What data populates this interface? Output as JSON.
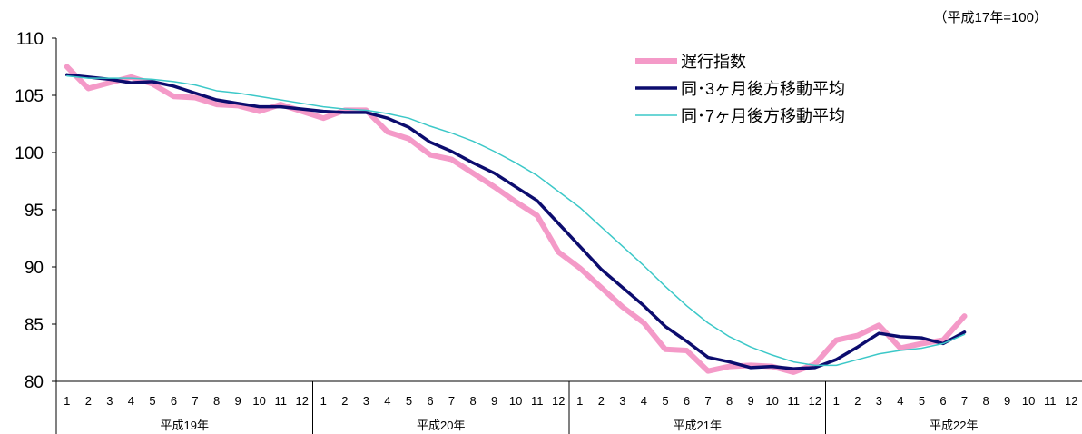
{
  "chart_data": {
    "type": "line",
    "unit_note": "（平成17年=100）",
    "ylim": [
      80,
      110
    ],
    "yticks": [
      80,
      85,
      90,
      95,
      100,
      105,
      110
    ],
    "month_labels": [
      "1",
      "2",
      "3",
      "4",
      "5",
      "6",
      "7",
      "8",
      "9",
      "10",
      "11",
      "12"
    ],
    "years": [
      "平成19年",
      "平成20年",
      "平成21年",
      "平成22年"
    ],
    "legend_placement": "top-center",
    "series": [
      {
        "name": "遅行指数",
        "color": "#f49ac8",
        "values": [
          107.5,
          105.6,
          106.1,
          106.6,
          106.0,
          104.9,
          104.8,
          104.2,
          104.1,
          103.6,
          104.2,
          103.6,
          103.0,
          103.7,
          103.7,
          101.8,
          101.2,
          99.8,
          99.4,
          98.2,
          97.0,
          95.7,
          94.5,
          91.3,
          89.9,
          88.2,
          86.5,
          85.1,
          82.8,
          82.7,
          80.9,
          81.3,
          81.4,
          81.3,
          80.8,
          81.5,
          83.6,
          84.0,
          84.9,
          82.9,
          83.3,
          83.6,
          85.7
        ]
      },
      {
        "name": "同･3ヶ月後方移動平均",
        "color": "#0c0c6e",
        "values": [
          106.8,
          106.6,
          106.4,
          106.1,
          106.2,
          105.8,
          105.2,
          104.6,
          104.3,
          104.0,
          104.0,
          103.8,
          103.6,
          103.5,
          103.5,
          103.0,
          102.2,
          100.9,
          100.1,
          99.1,
          98.2,
          97.0,
          95.8,
          93.8,
          91.8,
          89.8,
          88.2,
          86.6,
          84.8,
          83.5,
          82.1,
          81.7,
          81.2,
          81.3,
          81.1,
          81.2,
          81.9,
          83.0,
          84.2,
          83.9,
          83.8,
          83.3,
          84.3
        ]
      },
      {
        "name": "同･7ヶ月後方移動平均",
        "color": "#3cc8c8",
        "values": [
          106.7,
          106.5,
          106.5,
          106.5,
          106.4,
          106.2,
          105.9,
          105.4,
          105.2,
          104.9,
          104.6,
          104.3,
          104.0,
          103.8,
          103.7,
          103.4,
          103.0,
          102.3,
          101.7,
          101.0,
          100.1,
          99.1,
          98.0,
          96.6,
          95.2,
          93.5,
          91.8,
          90.1,
          88.3,
          86.6,
          85.1,
          83.9,
          83.0,
          82.3,
          81.7,
          81.4,
          81.4,
          81.9,
          82.4,
          82.7,
          82.9,
          83.3,
          84.1
        ]
      }
    ]
  }
}
